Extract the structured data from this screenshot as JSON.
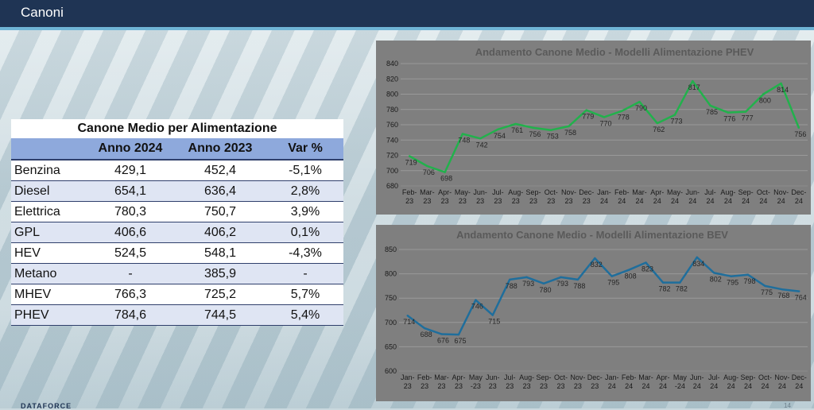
{
  "header": {
    "title": "Canoni"
  },
  "table": {
    "title": "Canone Medio per Alimentazione",
    "columns": [
      "",
      "Anno 2024",
      "Anno 2023",
      "Var %"
    ],
    "rows": [
      [
        "Benzina",
        "429,1",
        "452,4",
        "-5,1%"
      ],
      [
        "Diesel",
        "654,1",
        "636,4",
        "2,8%"
      ],
      [
        "Elettrica",
        "780,3",
        "750,7",
        "3,9%"
      ],
      [
        "GPL",
        "406,6",
        "406,2",
        "0,1%"
      ],
      [
        "HEV",
        "524,5",
        "548,1",
        "-4,3%"
      ],
      [
        "Metano",
        "-",
        "385,9",
        "-"
      ],
      [
        "MHEV",
        "766,3",
        "725,2",
        "5,7%"
      ],
      [
        "PHEV",
        "784,6",
        "744,5",
        "5,4%"
      ]
    ]
  },
  "chart_data": [
    {
      "type": "line",
      "title": "Andamento Canone Medio - Modelli Alimentazione PHEV",
      "color": "#22b14c",
      "x_top": [
        "Feb-",
        "Mar-",
        "Apr-",
        "May-",
        "Jun-",
        "Jul-",
        "Aug-",
        "Sep-",
        "Oct-",
        "Nov-",
        "Dec-",
        "Jan-",
        "Feb-",
        "Mar-",
        "Apr-",
        "May-",
        "Jun-",
        "Jul-",
        "Aug-",
        "Sep-",
        "Oct-",
        "Nov-",
        "Dec-"
      ],
      "x_bottom": [
        "23",
        "23",
        "23",
        "23",
        "23",
        "23",
        "23",
        "23",
        "23",
        "23",
        "23",
        "24",
        "24",
        "24",
        "24",
        "24",
        "24",
        "24",
        "24",
        "24",
        "24",
        "24",
        "24"
      ],
      "values": [
        719,
        706,
        698,
        748,
        742,
        754,
        761,
        756,
        753,
        758,
        779,
        770,
        778,
        790,
        762,
        773,
        817,
        785,
        776,
        777,
        800,
        814,
        756
      ],
      "ylim": [
        680,
        840
      ],
      "yticks": [
        680,
        700,
        720,
        740,
        760,
        780,
        800,
        820,
        840
      ],
      "grid": true,
      "legend": "none"
    },
    {
      "type": "line",
      "title": "Andamento Canone Medio - Modelli Alimentazione BEV",
      "color": "#1f6e9c",
      "x_top": [
        "Jan-",
        "Feb-",
        "Mar-",
        "Apr-",
        "May",
        "Jun-",
        "Jul-",
        "Aug-",
        "Sep-",
        "Oct-",
        "Nov-",
        "Dec-",
        "Jan-",
        "Feb-",
        "Mar-",
        "Apr-",
        "May",
        "Jun-",
        "Jul-",
        "Aug-",
        "Sep-",
        "Oct-",
        "Nov-",
        "Dec-"
      ],
      "x_bottom": [
        "23",
        "23",
        "23",
        "23",
        "-23",
        "23",
        "23",
        "23",
        "23",
        "23",
        "23",
        "23",
        "24",
        "24",
        "24",
        "24",
        "-24",
        "24",
        "24",
        "24",
        "24",
        "24",
        "24",
        "24"
      ],
      "values": [
        714,
        688,
        676,
        675,
        746,
        715,
        788,
        793,
        780,
        793,
        788,
        832,
        795,
        808,
        823,
        782,
        782,
        834,
        802,
        795,
        798,
        775,
        768,
        764
      ],
      "ylim": [
        600,
        850
      ],
      "yticks": [
        600,
        650,
        700,
        750,
        800,
        850
      ],
      "grid": true,
      "legend": "none"
    }
  ],
  "footer": {
    "logo": "DATAFORCE",
    "page": "14"
  }
}
